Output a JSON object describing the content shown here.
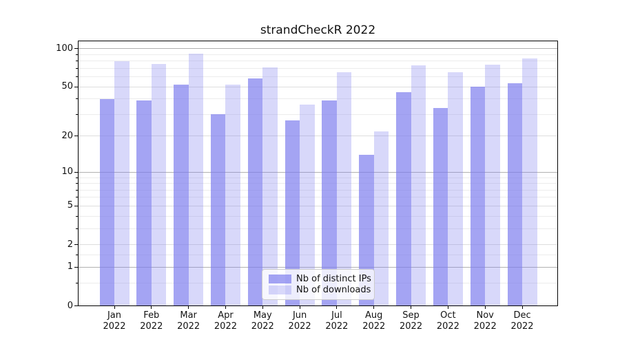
{
  "title": "strandCheckR 2022",
  "chart_data": {
    "type": "bar",
    "title": "strandCheckR 2022",
    "months": [
      "Jan",
      "Feb",
      "Mar",
      "Apr",
      "May",
      "Jun",
      "Jul",
      "Aug",
      "Sep",
      "Oct",
      "Nov",
      "Dec"
    ],
    "year": "2022",
    "series": [
      {
        "name": "Nb of distinct IPs",
        "color": "#7d7dee",
        "alpha": 0.7,
        "values": [
          40,
          39,
          52,
          30,
          58,
          27,
          39,
          14,
          45,
          34,
          50,
          53
        ]
      },
      {
        "name": "Nb of downloads",
        "color": "#7d7dee",
        "alpha": 0.3,
        "values": [
          80,
          76,
          91,
          52,
          71,
          36,
          65,
          22,
          74,
          65,
          75,
          84
        ]
      }
    ],
    "y_scale": "log1p",
    "y_major_ticks": [
      100,
      50,
      20,
      10,
      5,
      2,
      1,
      0
    ],
    "y_minor_ticks": [
      90,
      80,
      70,
      60,
      40,
      30,
      9,
      8,
      7,
      6,
      4,
      3,
      1.5,
      0.5
    ],
    "ylim": [
      0,
      115
    ],
    "xlabel": "",
    "ylabel": "",
    "grid": true,
    "legend_position": "lower center"
  },
  "colors": {
    "grid_decade": "#b0b0b0",
    "grid_major": "#dddddd",
    "grid_minor": "#ececec",
    "spine": "#000000",
    "legend_border": "#cccccc",
    "text": "#111111"
  }
}
